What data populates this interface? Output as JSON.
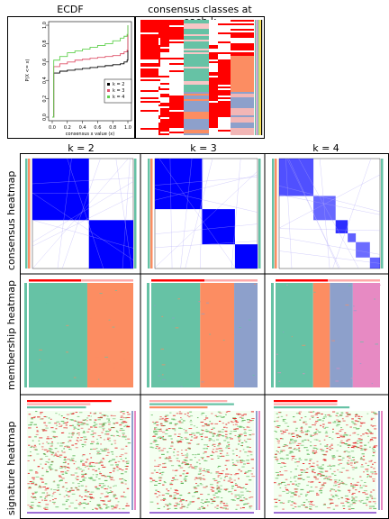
{
  "top": {
    "ecdf_title": "ECDF",
    "classes_title": "consensus classes at each k"
  },
  "ecdf": {
    "ylabel": "P(X <= x)",
    "xlabel": "consensus x value (x)",
    "xticks": [
      "0.0",
      "0.2",
      "0.4",
      "0.6",
      "0.8",
      "1.0"
    ],
    "yticks": [
      "0.0",
      "0.2",
      "0.4",
      "0.6",
      "0.8",
      "1.0"
    ],
    "legend": [
      "k = 2",
      "k = 3",
      "k = 4"
    ],
    "colors": [
      "#000000",
      "#DF536B",
      "#61D04F"
    ]
  },
  "columns": [
    "k = 2",
    "k = 3",
    "k = 4"
  ],
  "rows": [
    "consensus heatmap",
    "membership heatmap",
    "signature heatmap"
  ],
  "chart_data": {
    "type": "line",
    "x": [
      0.0,
      0.02,
      0.1,
      0.2,
      0.3,
      0.4,
      0.5,
      0.6,
      0.7,
      0.8,
      0.9,
      0.95,
      0.99,
      1.0
    ],
    "series": [
      {
        "name": "k = 2",
        "values": [
          0.0,
          0.48,
          0.5,
          0.51,
          0.52,
          0.53,
          0.54,
          0.55,
          0.56,
          0.57,
          0.58,
          0.6,
          0.62,
          1.0
        ]
      },
      {
        "name": "k = 3",
        "values": [
          0.0,
          0.55,
          0.58,
          0.6,
          0.62,
          0.63,
          0.64,
          0.65,
          0.66,
          0.67,
          0.69,
          0.71,
          0.73,
          1.0
        ]
      },
      {
        "name": "k = 4",
        "values": [
          0.0,
          0.62,
          0.66,
          0.7,
          0.72,
          0.74,
          0.76,
          0.78,
          0.8,
          0.83,
          0.86,
          0.88,
          0.9,
          1.0
        ]
      }
    ],
    "xlim": [
      0,
      1
    ],
    "ylim": [
      0,
      1
    ]
  },
  "palette": {
    "class1": "#66C2A5",
    "class2": "#FC8D62",
    "class3": "#8DA0CB",
    "class4": "#E78AC3",
    "consensus": "#0000FF",
    "sig_up": "#E41A1C",
    "sig_down": "#4DAF4A"
  }
}
